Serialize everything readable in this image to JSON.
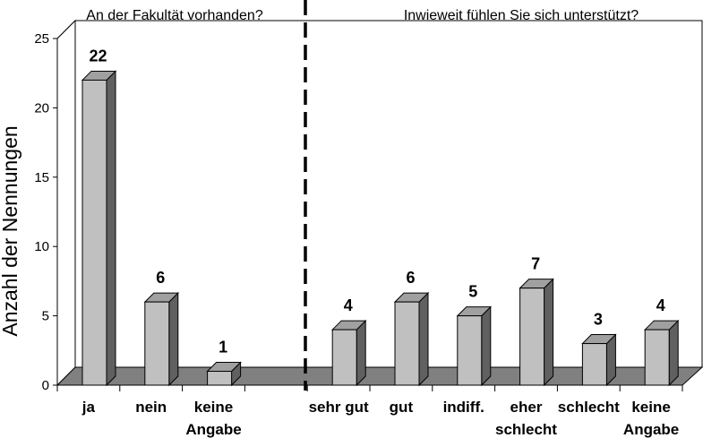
{
  "chart_data": {
    "type": "bar",
    "ylabel": "Anzahl der Nennungen",
    "ylim": [
      0,
      25
    ],
    "yticks": [
      0,
      5,
      10,
      15,
      20,
      25
    ],
    "grid": true,
    "style": "3d",
    "colors": {
      "bar_front": "#c0c0c0",
      "bar_side": "#606060",
      "bar_top": "#a0a0a0",
      "floor": "#808080"
    },
    "groups": [
      {
        "heading": "An der Fakultät vorhanden?",
        "categories": [
          [
            "ja"
          ],
          [
            "nein"
          ],
          [
            "keine",
            "Angabe"
          ]
        ],
        "values": [
          22,
          6,
          1
        ]
      },
      {
        "heading": "Inwieweit fühlen Sie sich unterstützt?",
        "categories": [
          [
            "sehr gut"
          ],
          [
            "gut"
          ],
          [
            "indiff."
          ],
          [
            "eher",
            "schlecht"
          ],
          [
            "schlecht"
          ],
          [
            "keine",
            "Angabe"
          ]
        ],
        "values": [
          4,
          6,
          5,
          7,
          3,
          4
        ]
      }
    ]
  }
}
